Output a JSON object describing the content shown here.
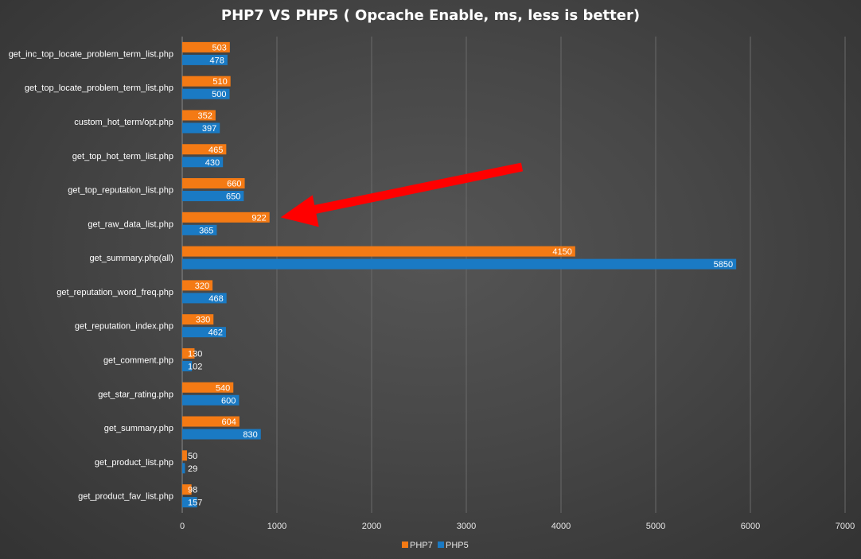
{
  "chart_data": {
    "type": "bar",
    "orientation": "horizontal",
    "title": "PHP7 VS PHP5 ( Opcache Enable, ms, less is better)",
    "xlabel": "",
    "ylabel": "",
    "xlim": [
      0,
      7000
    ],
    "ticks": [
      "0",
      "1000",
      "2000",
      "3000",
      "4000",
      "5000",
      "6000",
      "7000"
    ],
    "grid": true,
    "legend_position": "bottom",
    "categories": [
      "get_inc_top_locate_problem_term_list.php",
      "get_top_locate_problem_term_list.php",
      "custom_hot_term/opt.php",
      "get_top_hot_term_list.php",
      "get_top_reputation_list.php",
      "get_raw_data_list.php",
      "get_summary.php(all)",
      "get_reputation_word_freq.php",
      "get_reputation_index.php",
      "get_comment.php",
      "get_star_rating.php",
      "get_summary.php",
      "get_product_list.php",
      "get_product_fav_list.php"
    ],
    "series": [
      {
        "name": "PHP7",
        "color": "#f47a14",
        "values": [
          503,
          510,
          352,
          465,
          660,
          922,
          4150,
          320,
          330,
          130,
          540,
          604,
          50,
          98
        ]
      },
      {
        "name": "PHP5",
        "color": "#1a7ac4",
        "values": [
          478,
          500,
          397,
          430,
          650,
          365,
          5850,
          468,
          462,
          102,
          600,
          830,
          29,
          157
        ]
      }
    ],
    "annotation": {
      "type": "arrow",
      "color": "#ff0000",
      "target_category": "get_raw_data_list.php",
      "target_series": "PHP7"
    }
  }
}
